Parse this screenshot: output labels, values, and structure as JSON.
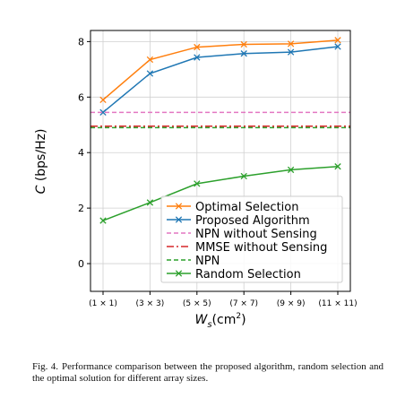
{
  "chart_data": {
    "type": "line",
    "xlabel_main": "W",
    "xlabel_sub": "s",
    "xlabel_unit_pre": "(cm",
    "xlabel_unit_sup": "2",
    "xlabel_unit_post": ")",
    "ylabel_main": "C",
    "ylabel_unit": " (bps/Hz)",
    "categories": [
      "(1 × 1)",
      "(3 × 3)",
      "(5 × 5)",
      "(7 × 7)",
      "(9 × 9)",
      "(11 × 11)"
    ],
    "ylim": [
      -1,
      8.4
    ],
    "yticks": [
      0,
      2,
      4,
      6,
      8
    ],
    "grid": true,
    "legend_position": "lower-right",
    "series": [
      {
        "name": "Optimal Selection",
        "color": "#ff7f0e",
        "style": "solid",
        "marker": "x",
        "values": [
          5.9,
          7.35,
          7.8,
          7.9,
          7.92,
          8.05
        ]
      },
      {
        "name": "Proposed Algorithm",
        "color": "#1f77b4",
        "style": "solid",
        "marker": "x",
        "values": [
          5.45,
          6.85,
          7.43,
          7.57,
          7.62,
          7.82
        ]
      },
      {
        "name": "NPN without Sensing",
        "color": "#e377c2",
        "style": "dashed",
        "marker": "none",
        "values": [
          5.45,
          5.45,
          5.45,
          5.45,
          5.45,
          5.45
        ]
      },
      {
        "name": "MMSE without Sensing",
        "color": "#d62728",
        "style": "dashdot",
        "marker": "none",
        "values": [
          4.95,
          4.95,
          4.95,
          4.95,
          4.95,
          4.95
        ]
      },
      {
        "name": "NPN",
        "color": "#2ca02c",
        "style": "dashed",
        "marker": "none",
        "values": [
          4.9,
          4.9,
          4.9,
          4.9,
          4.9,
          4.9
        ]
      },
      {
        "name": "Random Selection",
        "color": "#2ca02c",
        "style": "solid",
        "marker": "x",
        "values": [
          1.55,
          2.2,
          2.88,
          3.15,
          3.38,
          3.5
        ]
      }
    ]
  },
  "caption": {
    "label": "Fig. 4.",
    "text": "Performance comparison between the proposed algorithm, random selection and the optimal solution for different array sizes."
  }
}
